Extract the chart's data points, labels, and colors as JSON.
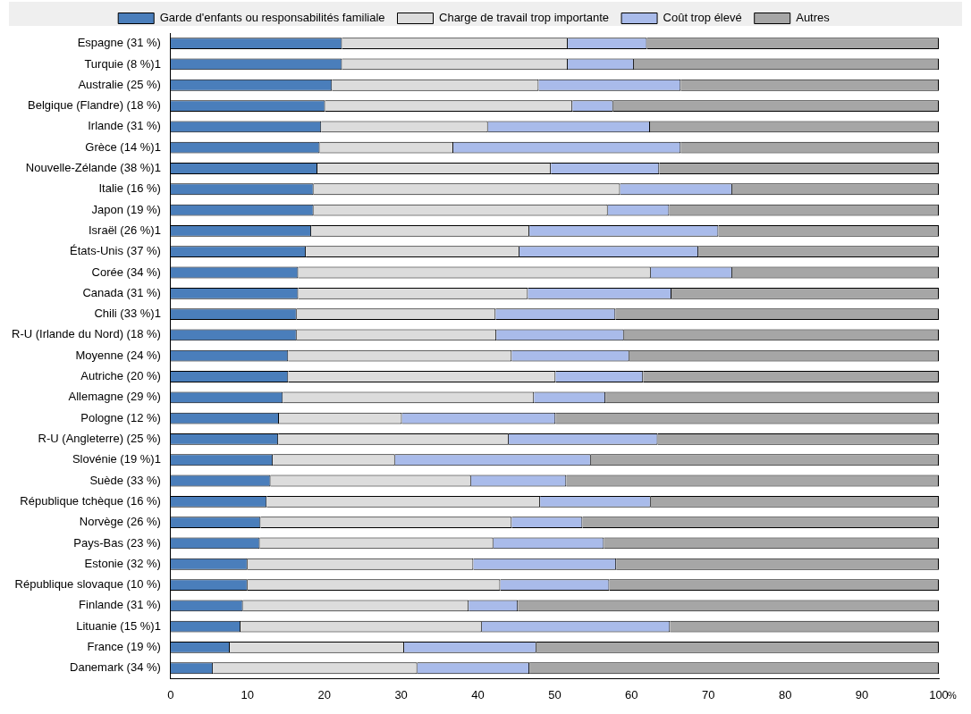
{
  "chart_data": {
    "type": "bar",
    "orientation": "horizontal",
    "stacked": true,
    "legend": "top",
    "grid": false,
    "xlabel": "%",
    "categories": [
      "Espagne (31 %)",
      "Turquie (8 %)1",
      "Australie (25 %)",
      "Belgique (Flandre) (18 %)",
      "Irlande (31 %)",
      "Grèce (14 %)1",
      "Nouvelle-Zélande (38 %)1",
      "Italie (16 %)",
      "Japon (19 %)",
      "Israël (26 %)1",
      "États-Unis (37 %)",
      "Corée (34 %)",
      "Canada (31 %)",
      "Chili (33 %)1",
      "R-U (Irlande du Nord) (18 %)",
      "Moyenne (24 %)",
      "Autriche (20 %)",
      "Allemagne (29 %)",
      "Pologne (12 %)",
      "R-U (Angleterre) (25 %)",
      "Slovénie (19 %)1",
      "Suède (33 %)",
      "République tchèque (16 %)",
      "Norvège (26 %)",
      "Pays-Bas (23 %)",
      "Estonie (32 %)",
      "République slovaque (10 %)",
      "Finlande (31 %)",
      "Lituanie (15 %)1",
      "France (19 %)",
      "Danemark (34 %)"
    ],
    "xlim": [
      0,
      100
    ],
    "xticks": [
      0,
      10,
      20,
      30,
      40,
      50,
      60,
      70,
      80,
      90,
      100
    ],
    "series": [
      {
        "name": "Garde d'enfants ou responsabilités familiale",
        "color": "#4a7ebb",
        "values": [
          22.3,
          22.3,
          21.0,
          20.1,
          19.6,
          19.4,
          19.1,
          18.6,
          18.6,
          18.3,
          17.6,
          16.6,
          16.6,
          16.4,
          16.4,
          15.3,
          15.3,
          14.6,
          14.1,
          14.0,
          13.3,
          13.0,
          12.5,
          11.7,
          11.6,
          10.0,
          10.0,
          9.4,
          9.1,
          7.7,
          5.5
        ]
      },
      {
        "name": "Charge de travail trop importante",
        "color": "#dcdcdc",
        "values": [
          29.4,
          29.4,
          26.9,
          32.2,
          21.7,
          17.4,
          30.4,
          39.9,
          38.3,
          28.4,
          27.8,
          45.9,
          29.9,
          25.9,
          26.0,
          29.1,
          34.8,
          32.7,
          16.0,
          30.0,
          15.9,
          26.1,
          35.6,
          32.7,
          30.4,
          29.4,
          32.9,
          29.4,
          31.4,
          22.7,
          26.6
        ]
      },
      {
        "name": "Coût trop élevé",
        "color": "#a9bbea",
        "values": [
          10.3,
          8.6,
          18.5,
          5.3,
          21.1,
          29.6,
          14.1,
          14.6,
          8.0,
          24.6,
          23.3,
          10.6,
          18.7,
          15.6,
          16.6,
          15.3,
          11.4,
          9.3,
          20.0,
          19.4,
          25.5,
          12.4,
          14.4,
          9.2,
          14.4,
          18.6,
          14.2,
          6.4,
          24.5,
          17.2,
          14.6
        ]
      },
      {
        "name": "Autres",
        "color": "#a6a6a6",
        "values": [
          38.0,
          39.7,
          33.6,
          42.4,
          37.6,
          33.6,
          36.4,
          26.9,
          35.1,
          28.7,
          31.3,
          26.9,
          34.8,
          42.1,
          41.0,
          40.3,
          38.5,
          43.4,
          49.9,
          36.6,
          45.3,
          48.5,
          37.5,
          46.4,
          43.6,
          42.0,
          42.9,
          54.8,
          35.0,
          52.4,
          53.3
        ]
      }
    ]
  }
}
